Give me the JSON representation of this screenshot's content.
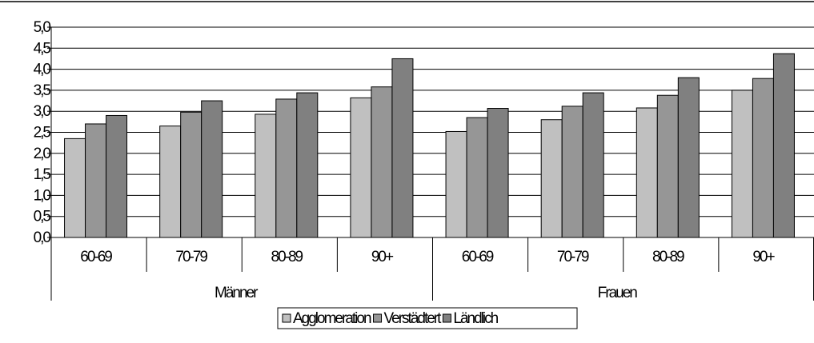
{
  "chart_data": {
    "type": "bar",
    "title": "",
    "xlabel": "",
    "ylabel": "",
    "ylim": [
      0,
      5
    ],
    "yticks": [
      "0,0",
      "0,5",
      "1,0",
      "1,5",
      "2,0",
      "2,5",
      "3,0",
      "3,5",
      "4,0",
      "4,5",
      "5,0"
    ],
    "groups": [
      "Männer",
      "Frauen"
    ],
    "categories": [
      "60-69",
      "70-79",
      "80-89",
      "90+",
      "60-69",
      "70-79",
      "80-89",
      "90+"
    ],
    "series": [
      {
        "name": "Agglomeration",
        "color": "#c0c0c0",
        "values": [
          2.35,
          2.65,
          2.93,
          3.32,
          2.52,
          2.8,
          3.08,
          3.5
        ]
      },
      {
        "name": "Verstädtert",
        "color": "#969696",
        "values": [
          2.7,
          2.98,
          3.29,
          3.58,
          2.85,
          3.12,
          3.38,
          3.78
        ]
      },
      {
        "name": "Ländlich",
        "color": "#808080",
        "values": [
          2.9,
          3.25,
          3.44,
          4.25,
          3.07,
          3.44,
          3.8,
          4.37
        ]
      }
    ],
    "grid": true,
    "legend_position": "bottom"
  }
}
